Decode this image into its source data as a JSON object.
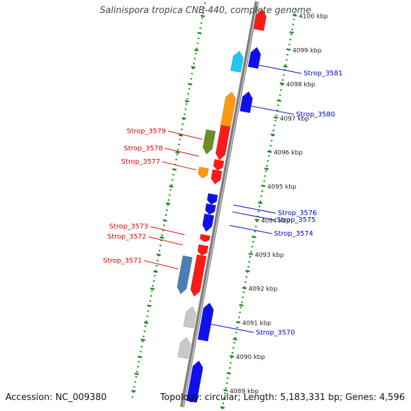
{
  "title": "Salinispora tropica CNB-440, complete genome",
  "footer": {
    "accession": "Accession: NC_009380",
    "summary": "Topology: circular; Length: 5,183,331 bp; Genes: 4,596"
  },
  "colors": {
    "background": "#ffffff",
    "backbone": "#7f7f7f",
    "tick_dots": "#1a8a1a",
    "forward_label": "#e00000",
    "reverse_label": "#0000cc",
    "red": "#ff1a1a",
    "blue": "#1010ee",
    "cyan": "#20c8f0",
    "orange": "#ff9a10",
    "olive": "#6b8f23",
    "steel_blue": "#4a7fb5",
    "gray": "#c8c8c8"
  },
  "scale": {
    "unit": "kbp",
    "ticks": [
      {
        "label": "4089 kbp",
        "position": 4089
      },
      {
        "label": "4090 kbp",
        "position": 4090
      },
      {
        "label": "4091 kbp",
        "position": 4091
      },
      {
        "label": "4092 kbp",
        "position": 4092
      },
      {
        "label": "4093 kbp",
        "position": 4093
      },
      {
        "label": "4094 kbp",
        "position": 4094
      },
      {
        "label": "4095 kbp",
        "position": 4095
      },
      {
        "label": "4096 kbp",
        "position": 4096
      },
      {
        "label": "4097 kbp",
        "position": 4097
      },
      {
        "label": "4098 kbp",
        "position": 4098
      },
      {
        "label": "4099 kbp",
        "position": 4099
      },
      {
        "label": "4100 kbp",
        "position": 4100
      }
    ]
  },
  "features": {
    "reverse_strand": [
      {
        "color": "red",
        "start": 4099.4,
        "end": 4100.0
      },
      {
        "color": "blue",
        "start": 4098.3,
        "end": 4098.9
      },
      {
        "color": "cyan",
        "start": 4098.1,
        "end": 4098.7
      },
      {
        "color": "blue",
        "start": 4097.0,
        "end": 4097.6
      },
      {
        "color": "orange",
        "start": 4096.5,
        "end": 4097.5
      },
      {
        "color": "gray",
        "start": 4090.6,
        "end": 4091.2
      },
      {
        "color": "blue",
        "start": 4090.3,
        "end": 4091.4
      },
      {
        "color": "gray",
        "start": 4089.7,
        "end": 4090.3
      },
      {
        "color": "blue",
        "start": 4088.5,
        "end": 4089.7
      }
    ],
    "forward_strand": [
      {
        "color": "olive",
        "start": 4095.6,
        "end": 4096.3
      },
      {
        "color": "red",
        "start": 4095.5,
        "end": 4096.5
      },
      {
        "color": "red",
        "start": 4095.2,
        "end": 4095.5
      },
      {
        "color": "orange",
        "start": 4094.9,
        "end": 4095.2
      },
      {
        "color": "red",
        "start": 4094.8,
        "end": 4095.2
      },
      {
        "color": "blue",
        "start": 4094.2,
        "end": 4094.5
      },
      {
        "color": "blue",
        "start": 4093.9,
        "end": 4094.2
      },
      {
        "color": "blue",
        "start": 4093.4,
        "end": 4093.9
      },
      {
        "color": "red",
        "start": 4093.1,
        "end": 4093.3
      },
      {
        "color": "red",
        "start": 4092.7,
        "end": 4093.0
      },
      {
        "color": "steel_blue",
        "start": 4091.5,
        "end": 4092.6
      },
      {
        "color": "red",
        "start": 4091.5,
        "end": 4092.7
      }
    ]
  },
  "gene_labels": [
    {
      "text": "Strop_3581",
      "strand": "reverse",
      "position": 4098.4
    },
    {
      "text": "Strop_3580",
      "strand": "reverse",
      "position": 4097.2
    },
    {
      "text": "Strop_3579",
      "strand": "forward",
      "position": 4096.0
    },
    {
      "text": "Strop_3578",
      "strand": "forward",
      "position": 4095.5
    },
    {
      "text": "Strop_3577",
      "strand": "forward",
      "position": 4095.1
    },
    {
      "text": "Strop_3576",
      "strand": "reverse",
      "position": 4094.3
    },
    {
      "text": "Strop_3575",
      "strand": "reverse",
      "position": 4094.1
    },
    {
      "text": "Strop_3574",
      "strand": "reverse",
      "position": 4093.7
    },
    {
      "text": "Strop_3573",
      "strand": "forward",
      "position": 4093.2
    },
    {
      "text": "Strop_3572",
      "strand": "forward",
      "position": 4092.9
    },
    {
      "text": "Strop_3571",
      "strand": "forward",
      "position": 4092.2
    },
    {
      "text": "Strop_3570",
      "strand": "reverse",
      "position": 4090.8
    }
  ]
}
